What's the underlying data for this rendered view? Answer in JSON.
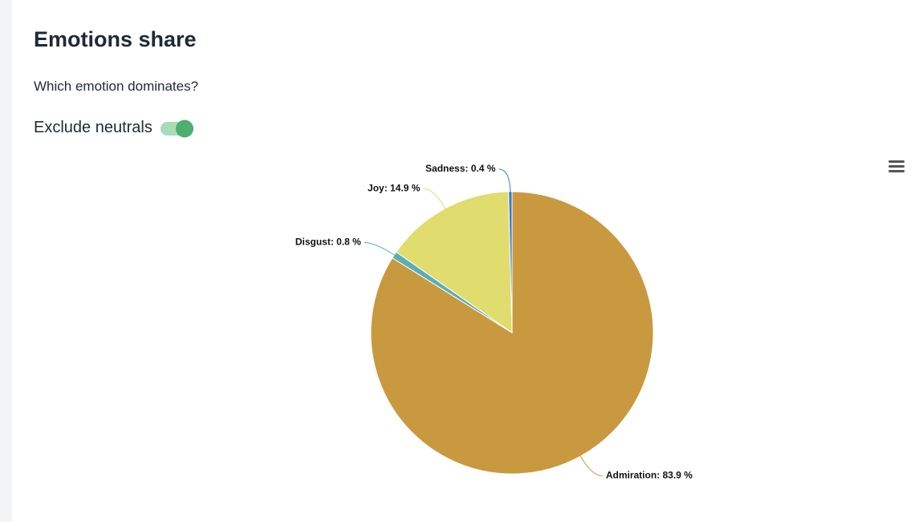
{
  "header": {
    "title": "Emotions share",
    "subtitle": "Which emotion dominates?",
    "toggle_label": "Exclude neutrals"
  },
  "chart_data": {
    "type": "pie",
    "values": [
      83.9,
      0.8,
      14.9,
      0.4
    ],
    "value_labels": [
      "Admiration: 83.9 %",
      "Disgust: 0.8 %",
      "Joy: 14.9 %",
      "Sadness: 0.4 %"
    ],
    "colors": [
      "#c9993f",
      "#5aaeb6",
      "#e0dc6e",
      "#3f78c8"
    ]
  }
}
